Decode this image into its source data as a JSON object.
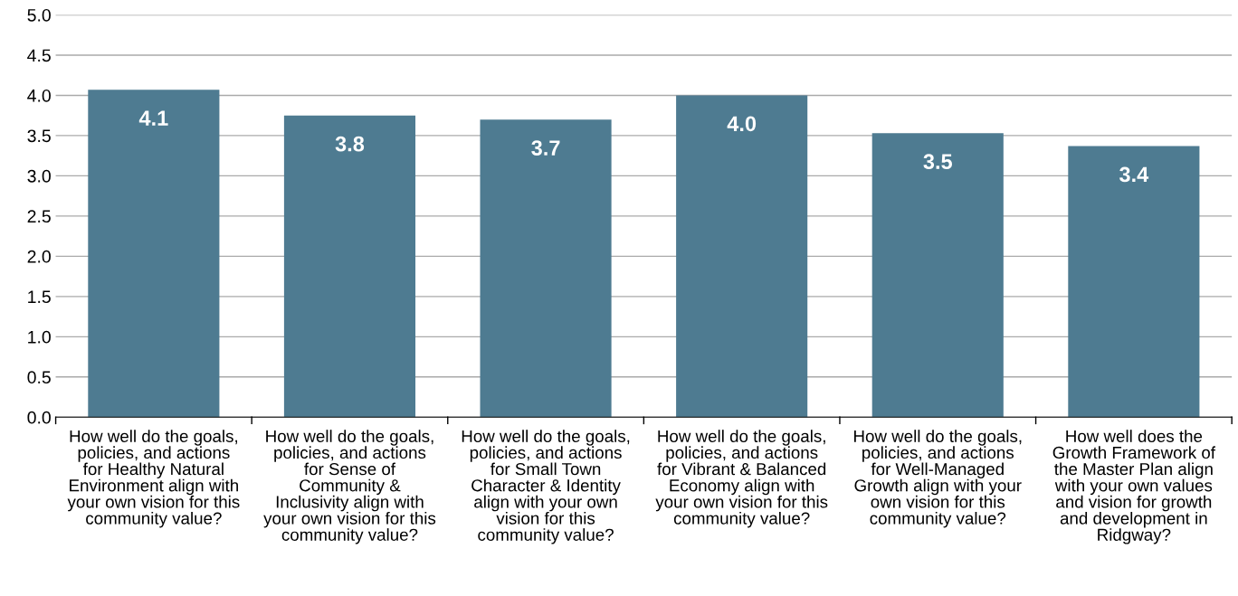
{
  "chart_data": {
    "type": "bar",
    "categories": [
      "How well do the goals,\npolicies, and actions\nfor Healthy Natural\nEnvironment align with\nyour own vision for this\ncommunity value?",
      "How well do the goals,\npolicies, and actions\nfor Sense of\nCommunity &\nInclusivity align with\nyour own vision for this\ncommunity value?",
      "How well do the goals,\npolicies, and actions\nfor Small Town\nCharacter & Identity\nalign with your own\nvision for this\ncommunity value?",
      "How well do the goals,\npolicies, and actions\nfor Vibrant & Balanced\nEconomy align with\nyour own vision for this\ncommunity value?",
      "How well do the goals,\npolicies, and actions\nfor Well-Managed\nGrowth align with your\nown vision for this\ncommunity value?",
      "How well does the\nGrowth Framework of\nthe Master Plan align\nwith your own values\nand vision for growth\nand development in\nRidgway?"
    ],
    "values": [
      4.07,
      3.75,
      3.7,
      4.0,
      3.53,
      3.37
    ],
    "value_labels": [
      "4.1",
      "3.8",
      "3.7",
      "4.0",
      "3.5",
      "3.4"
    ],
    "color": "#4e7b91",
    "ylim": [
      0,
      5
    ],
    "yticks": [
      {
        "value": 0,
        "label": "0.0"
      },
      {
        "value": 0.5,
        "label": "0.5"
      },
      {
        "value": 1,
        "label": "1.0"
      },
      {
        "value": 1.5,
        "label": "1.5"
      },
      {
        "value": 2,
        "label": "2.0"
      },
      {
        "value": 2.5,
        "label": "2.5"
      },
      {
        "value": 3,
        "label": "3.0"
      },
      {
        "value": 3.5,
        "label": "3.5"
      },
      {
        "value": 4,
        "label": "4.0"
      },
      {
        "value": 4.5,
        "label": "4.5"
      },
      {
        "value": 5,
        "label": "5.0"
      }
    ],
    "grid": "y"
  }
}
